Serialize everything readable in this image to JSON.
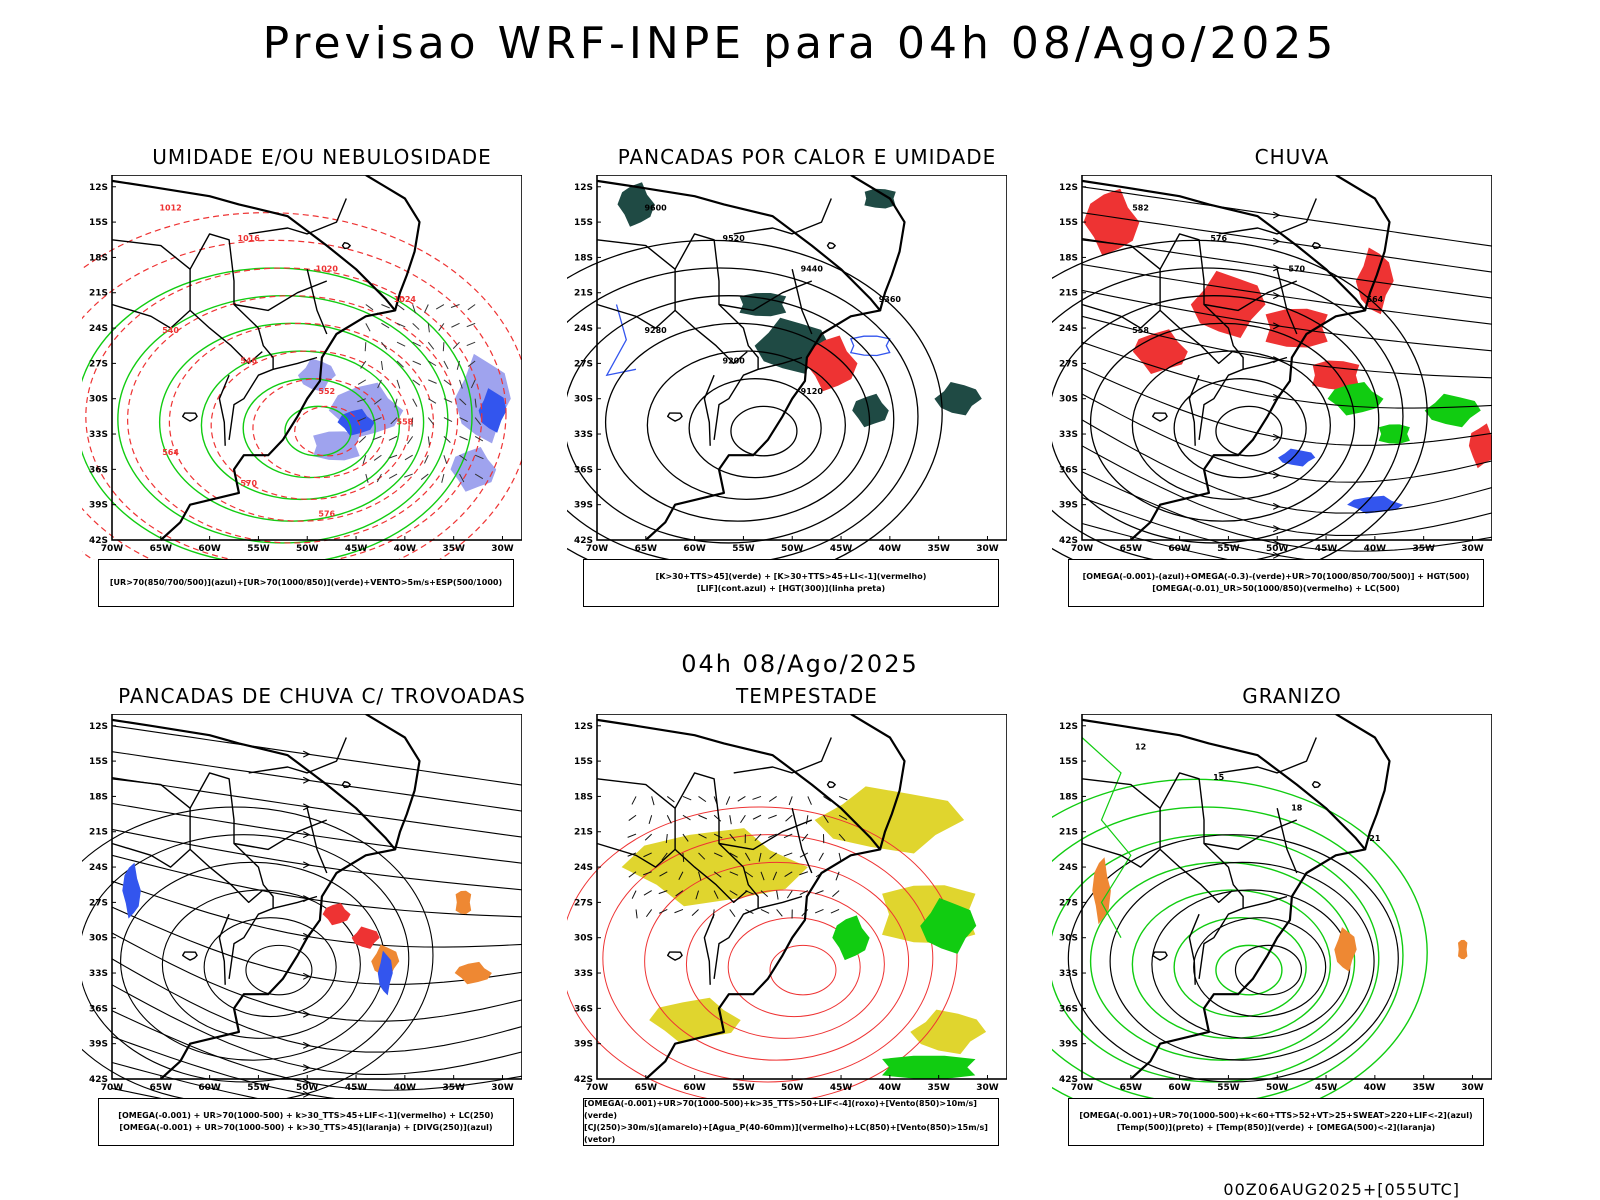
{
  "main_title": "Previsao WRF-INPE  para 04h 08/Ago/2025",
  "mid_title": "04h 08/Ago/2025",
  "footer": "00Z06AUG2025+[055UTC]",
  "lat_ticks": [
    "12S",
    "15S",
    "18S",
    "21S",
    "24S",
    "27S",
    "30S",
    "33S",
    "36S",
    "39S",
    "42S"
  ],
  "lon_ticks": [
    "70W",
    "65W",
    "60W",
    "55W",
    "50W",
    "45W",
    "40W",
    "35W",
    "30W"
  ],
  "panels": [
    {
      "title": "UMIDADE E/OU NEBULOSIDADE",
      "legend": [
        "[UR>70(850/700/500)](azul)+[UR>70(1000/850)](verde)+VENTO>5m/s+ESP(500/1000)"
      ],
      "labels": [
        "1012",
        "1016",
        "1020",
        "1024",
        "540",
        "546",
        "552",
        "558",
        "564",
        "570",
        "576"
      ]
    },
    {
      "title": "PANCADAS POR CALOR E UMIDADE",
      "legend": [
        "[K>30+TTS>45](verde)  +  [K>30+TTS>45+LI<-1](vermelho)",
        "[LIF](cont.azul)  +  [HGT(300)](linha preta)"
      ],
      "labels": [
        "9600",
        "9520",
        "9440",
        "9360",
        "9280",
        "9200",
        "9120"
      ]
    },
    {
      "title": "CHUVA",
      "legend": [
        "[OMEGA(-0.001)-(azul)+OMEGA(-0.3)-(verde)+UR>70(1000/850/700/500)]  +  HGT(500)",
        "[OMEGA(-0.01)_UR>50(1000/850)(vermelho)  +  LC(500)"
      ],
      "labels": [
        "582",
        "576",
        "570",
        "564",
        "558"
      ]
    },
    {
      "title": "PANCADAS DE CHUVA C/ TROVOADAS",
      "legend": [
        "[OMEGA(-0.001)  +  UR>70(1000-500)  +  k>30_TTS>45+LIF<-1](vermelho)  +  LC(250)",
        "[OMEGA(-0.001)  +  UR>70(1000-500)  +  k>30_TTS>45](laranja)  +  [DIVG(250)](azul)"
      ],
      "labels": []
    },
    {
      "title": "TEMPESTADE",
      "legend": [
        "[OMEGA(-0.001)+UR>70(1000-500)+k>35_TTS>50+LIF<-4](roxo)+[Vento(850)>10m/s](verde)",
        "[CJ(250)>30m/s](amarelo)+[Agua_P(40-60mm)](vermelho)+LC(850)+[Vento(850)>15m/s](vetor)"
      ],
      "labels": []
    },
    {
      "title": "GRANIZO",
      "legend": [
        "[OMEGA(-0.001)+UR>70(1000-500)+k<60+TTS>52+VT>25+SWEAT>220+LIF<-2](azul)",
        "[Temp(500)](preto)  +  [Temp(850)](verde)  +  [OMEGA(500)<-2](laranja)"
      ],
      "labels": [
        "12",
        "15",
        "18",
        "21"
      ]
    }
  ],
  "colors": {
    "green": "#11cc11",
    "blue": "#3355ee",
    "red": "#ee3333",
    "darkteal": "#1f4a44",
    "yellow": "#e0d52e",
    "orange": "#ee8833",
    "lavender": "#9fa3ee"
  }
}
